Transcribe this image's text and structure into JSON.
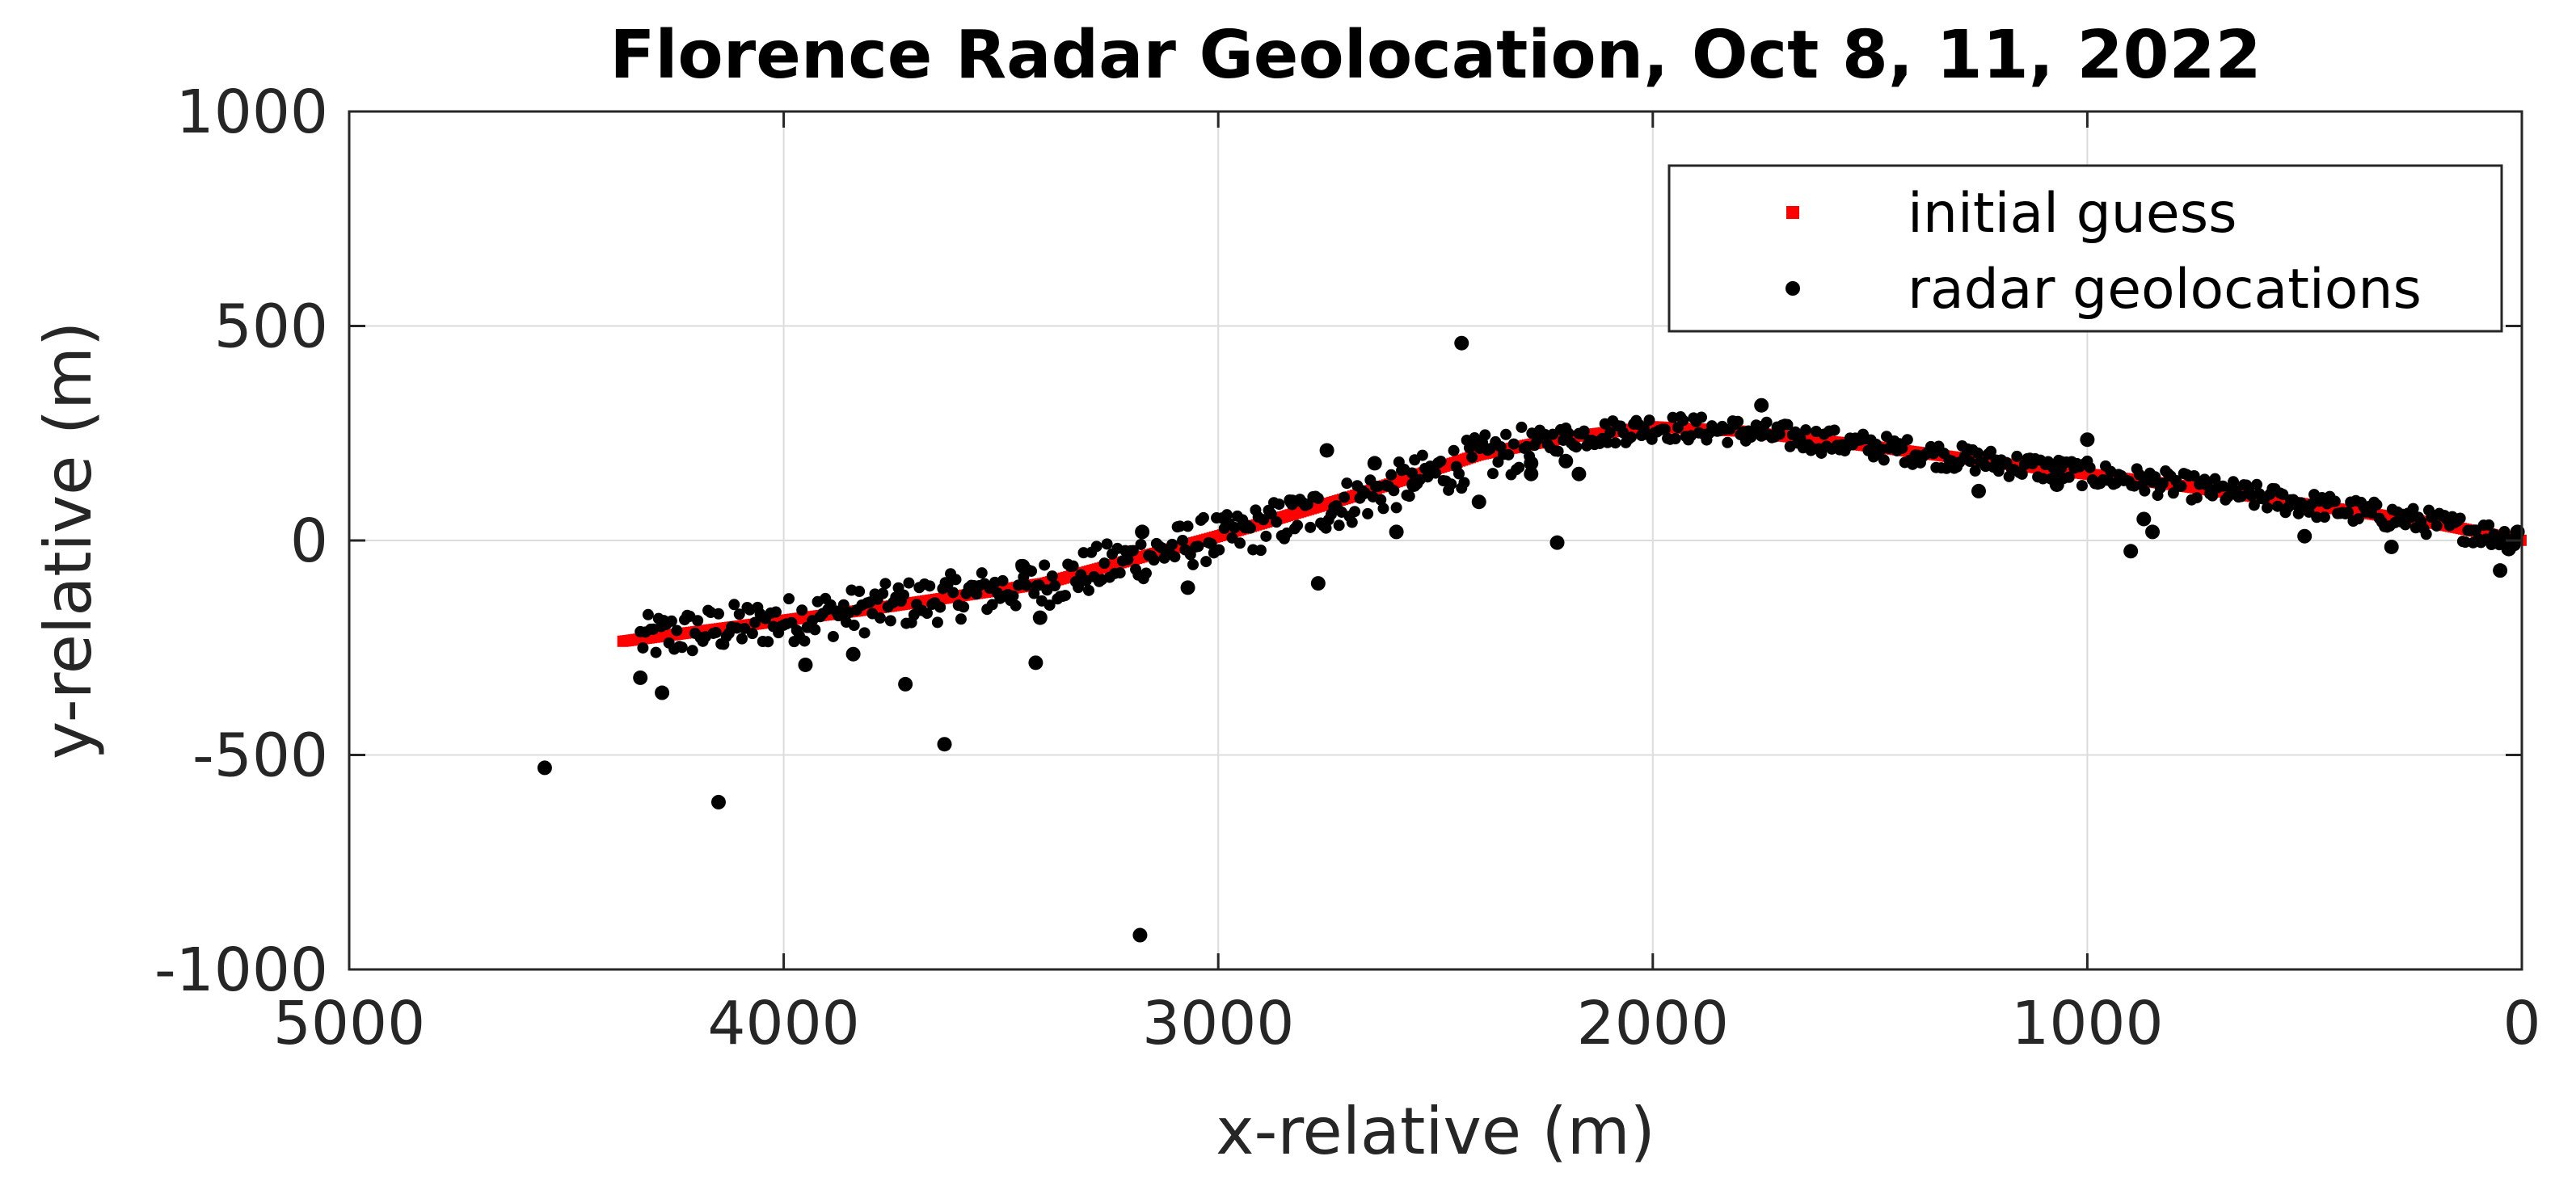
{
  "chart_data": {
    "type": "scatter",
    "title": "Florence Radar Geolocation, Oct 8, 11, 2022",
    "xlabel": "x-relative (m)",
    "ylabel": "y-relative (m)",
    "xlim": [
      5000,
      0
    ],
    "ylim": [
      -1000,
      1000
    ],
    "x_reversed": true,
    "grid": true,
    "legend_position": "top-right",
    "xticks": [
      5000,
      4000,
      3000,
      2000,
      1000,
      0
    ],
    "yticks": [
      1000,
      500,
      0,
      -500,
      -1000
    ],
    "xtick_labels": [
      "5000",
      "4000",
      "3000",
      "2000",
      "1000",
      "0"
    ],
    "ytick_labels": [
      "1000",
      "500",
      "0",
      "-500",
      "-1000"
    ],
    "series": [
      {
        "name": "initial guess",
        "color": "#ff0000",
        "marker": "square",
        "path": [
          [
            4370,
            -235
          ],
          [
            3800,
            -160
          ],
          [
            3400,
            -100
          ],
          [
            3000,
            10
          ],
          [
            2700,
            100
          ],
          [
            2400,
            200
          ],
          [
            2200,
            240
          ],
          [
            2000,
            265
          ],
          [
            1800,
            255
          ],
          [
            1500,
            220
          ],
          [
            1200,
            180
          ],
          [
            1000,
            155
          ],
          [
            800,
            130
          ],
          [
            500,
            85
          ],
          [
            200,
            40
          ],
          [
            0,
            0
          ]
        ]
      },
      {
        "name": "radar geolocations",
        "color": "#000000",
        "marker": "dot",
        "outliers": [
          [
            4550,
            -530
          ],
          [
            4150,
            -610
          ],
          [
            4280,
            -355
          ],
          [
            4330,
            -320
          ],
          [
            3950,
            -290
          ],
          [
            3840,
            -265
          ],
          [
            3720,
            -335
          ],
          [
            3630,
            -475
          ],
          [
            3450,
            -60
          ],
          [
            3420,
            -285
          ],
          [
            3410,
            -180
          ],
          [
            3180,
            -920
          ],
          [
            3175,
            20
          ],
          [
            3070,
            -110
          ],
          [
            2770,
            -100
          ],
          [
            2750,
            210
          ],
          [
            2590,
            20
          ],
          [
            2440,
            460
          ],
          [
            2400,
            90
          ],
          [
            2280,
            155
          ],
          [
            2280,
            180
          ],
          [
            2220,
            -5
          ],
          [
            2170,
            155
          ],
          [
            2200,
            185
          ],
          [
            1750,
            315
          ],
          [
            1250,
            115
          ],
          [
            1000,
            235
          ],
          [
            1070,
            130
          ],
          [
            1060,
            180
          ],
          [
            900,
            -25
          ],
          [
            850,
            20
          ],
          [
            870,
            50
          ],
          [
            500,
            10
          ],
          [
            300,
            -15
          ],
          [
            50,
            -70
          ],
          [
            30,
            -20
          ],
          [
            10,
            20
          ],
          [
            2830,
            90
          ],
          [
            2640,
            180
          ],
          [
            2550,
            130
          ]
        ]
      }
    ]
  }
}
